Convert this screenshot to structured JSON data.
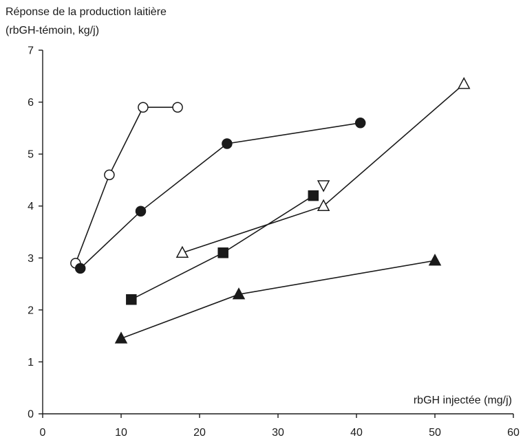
{
  "chart_data": {
    "type": "scatter",
    "title": "",
    "ylabel_line1": "Réponse de la production laitière",
    "ylabel_line2": "(rbGH-témoin, kg/j)",
    "xlabel": "rbGH injectée (mg/j)",
    "xlim": [
      0,
      60
    ],
    "ylim": [
      0,
      7
    ],
    "xticks": [
      "0",
      "10",
      "20",
      "30",
      "40",
      "50",
      "60"
    ],
    "yticks": [
      "0",
      "1",
      "2",
      "3",
      "4",
      "5",
      "6",
      "7"
    ],
    "grid": false,
    "legend": "none",
    "series": [
      {
        "marker": "open-circle",
        "points": [
          [
            4.2,
            2.9
          ],
          [
            8.5,
            4.6
          ],
          [
            12.8,
            5.9
          ],
          [
            17.2,
            5.9
          ]
        ]
      },
      {
        "marker": "filled-circle",
        "points": [
          [
            4.8,
            2.8
          ],
          [
            12.5,
            3.9
          ],
          [
            23.5,
            5.2
          ],
          [
            40.5,
            5.6
          ]
        ]
      },
      {
        "marker": "filled-square",
        "points": [
          [
            11.3,
            2.2
          ],
          [
            23.0,
            3.1
          ],
          [
            34.5,
            4.2
          ]
        ]
      },
      {
        "marker": "open-triangle-up",
        "points": [
          [
            17.8,
            3.1
          ],
          [
            35.8,
            4.0
          ],
          [
            53.7,
            6.35
          ]
        ]
      },
      {
        "marker": "open-triangle-down",
        "points": [
          [
            35.8,
            4.4
          ]
        ]
      },
      {
        "marker": "filled-triangle-up",
        "points": [
          [
            10.0,
            1.45
          ],
          [
            25.0,
            2.3
          ],
          [
            50.0,
            2.95
          ]
        ]
      }
    ]
  }
}
